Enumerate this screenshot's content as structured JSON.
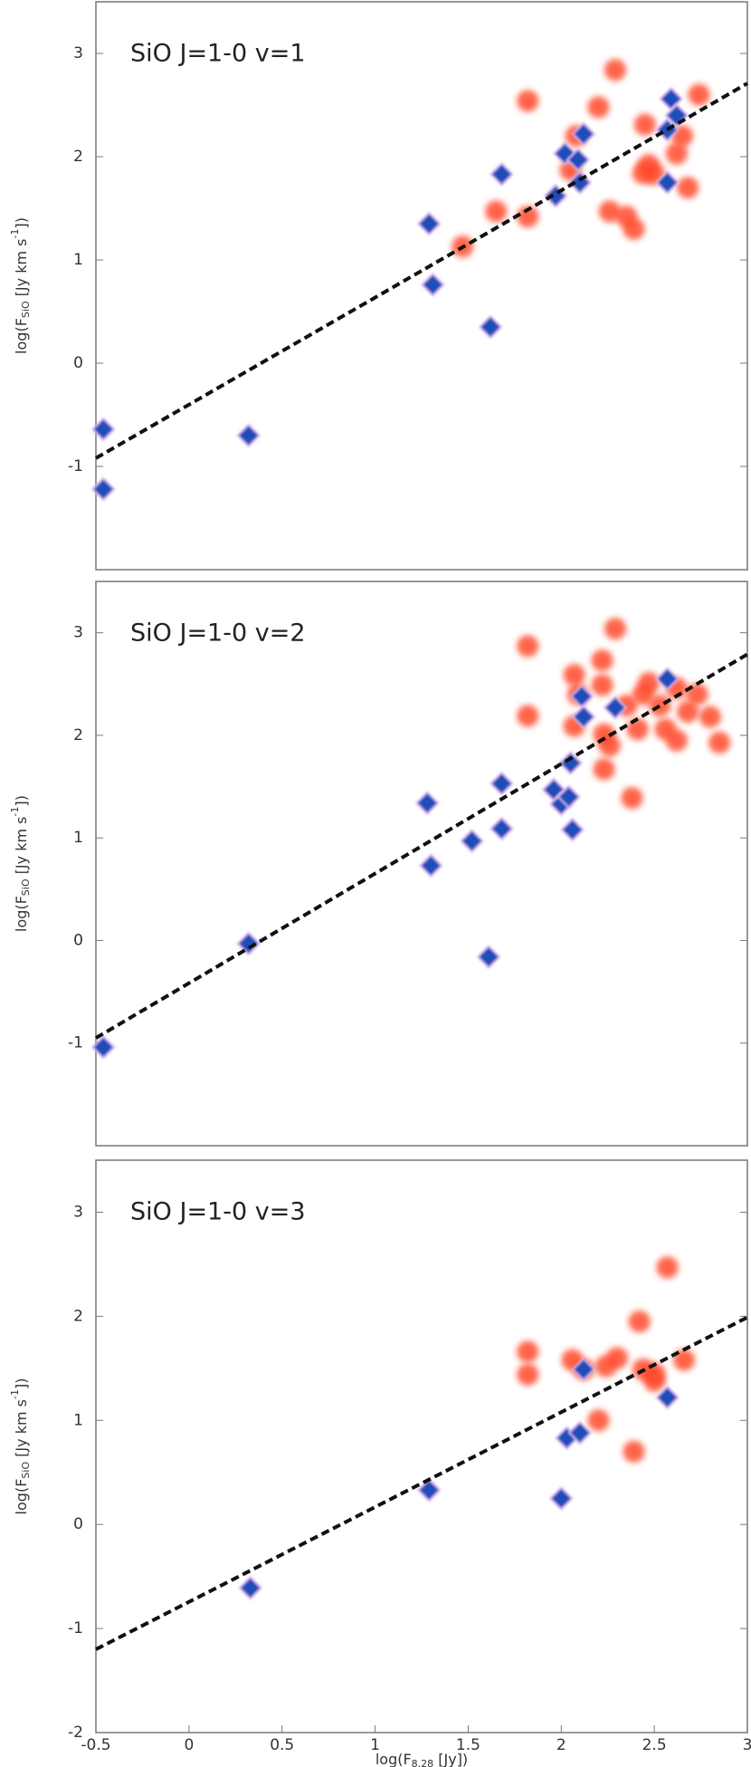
{
  "chart_data": [
    {
      "type": "scatter",
      "title": "SiO J=1-0 v=1",
      "ylabel": [
        "log(F",
        "SiO",
        " [Jy km s",
        "-1",
        "])"
      ],
      "xlim": [
        -0.5,
        3
      ],
      "ylim": [
        -2,
        3.5
      ],
      "yticks": [
        -1,
        0,
        1,
        2,
        3
      ],
      "series": [
        {
          "color": "#ff4a2a",
          "x": [
            1.47,
            1.65,
            1.82,
            1.82,
            2.05,
            2.08,
            2.2,
            2.29,
            2.26,
            2.35,
            2.39,
            2.45,
            2.47,
            2.5,
            2.62,
            2.65,
            2.74,
            2.68,
            2.44
          ],
          "y": [
            1.13,
            1.47,
            1.42,
            2.54,
            1.87,
            2.2,
            2.48,
            2.84,
            1.47,
            1.42,
            1.3,
            2.31,
            1.92,
            1.83,
            2.03,
            2.2,
            2.6,
            1.7,
            1.84
          ]
        },
        {
          "color": "#1f4db8",
          "x": [
            -0.46,
            -0.46,
            0.32,
            1.29,
            1.31,
            1.62,
            1.68,
            1.97,
            2.02,
            2.1,
            2.12,
            2.09,
            2.57,
            2.57,
            2.59,
            2.62
          ],
          "y": [
            -0.64,
            -1.22,
            -0.7,
            1.35,
            0.76,
            0.35,
            1.83,
            1.62,
            2.03,
            1.75,
            2.22,
            1.97,
            2.26,
            1.75,
            2.56,
            2.4
          ]
        }
      ],
      "fit": {
        "color": "#111111",
        "x": [
          -0.5,
          3
        ],
        "y": [
          -0.92,
          2.71
        ]
      }
    },
    {
      "type": "scatter",
      "title": "SiO J=1-0 v=2",
      "ylabel": [
        "log(F",
        "SiO",
        " [Jy km s",
        "-1",
        "])"
      ],
      "xlim": [
        -0.5,
        3
      ],
      "ylim": [
        -2,
        3.5
      ],
      "yticks": [
        -1,
        0,
        1,
        2,
        3
      ],
      "series": [
        {
          "color": "#ff4a2a",
          "x": [
            1.82,
            1.82,
            2.07,
            2.09,
            2.07,
            2.22,
            2.22,
            2.29,
            2.23,
            2.26,
            2.23,
            2.38,
            2.35,
            2.44,
            2.47,
            2.53,
            2.56,
            2.62,
            2.68,
            2.73,
            2.8,
            2.85,
            2.62,
            2.41
          ],
          "y": [
            2.87,
            2.19,
            2.59,
            2.4,
            2.09,
            2.73,
            2.49,
            3.04,
            2.01,
            1.9,
            1.67,
            1.39,
            2.29,
            2.4,
            2.51,
            2.29,
            2.06,
            1.95,
            2.23,
            2.4,
            2.18,
            1.93,
            2.46,
            2.06
          ]
        },
        {
          "color": "#1f4db8",
          "x": [
            -0.46,
            0.32,
            1.28,
            1.3,
            1.52,
            1.61,
            1.68,
            1.68,
            1.96,
            2.0,
            2.04,
            2.06,
            2.05,
            2.11,
            2.12,
            2.29,
            2.57
          ],
          "y": [
            -1.04,
            -0.03,
            1.34,
            0.73,
            0.97,
            -0.16,
            1.53,
            1.09,
            1.47,
            1.33,
            1.4,
            1.08,
            1.73,
            2.38,
            2.18,
            2.27,
            2.55
          ]
        }
      ],
      "fit": {
        "color": "#111111",
        "x": [
          -0.5,
          3
        ],
        "y": [
          -0.95,
          2.79
        ]
      }
    },
    {
      "type": "scatter",
      "title": "SiO J=1-0 v=3",
      "ylabel": [
        "log(F",
        "SiO",
        " [Jy km s",
        "-1",
        "])"
      ],
      "xlabel": [
        "log(F",
        "8.28",
        " [Jy])"
      ],
      "xlim": [
        -0.5,
        3
      ],
      "ylim": [
        -2,
        3.5
      ],
      "yticks": [
        -2,
        -1,
        0,
        1,
        2,
        3
      ],
      "xticks": [
        -0.5,
        0,
        0.5,
        1,
        1.5,
        2,
        2.5,
        3
      ],
      "series": [
        {
          "color": "#ff4a2a",
          "x": [
            1.82,
            1.82,
            2.06,
            2.12,
            2.2,
            2.24,
            2.3,
            2.39,
            2.42,
            2.44,
            2.5,
            2.57,
            2.66,
            2.5
          ],
          "y": [
            1.66,
            1.44,
            1.58,
            1.49,
            1.0,
            1.52,
            1.6,
            0.7,
            1.95,
            1.49,
            1.38,
            2.47,
            1.58,
            1.45
          ]
        },
        {
          "color": "#1f4db8",
          "x": [
            0.33,
            1.29,
            2.0,
            2.03,
            2.1,
            2.12,
            2.57
          ],
          "y": [
            -0.61,
            0.33,
            0.25,
            0.83,
            0.88,
            1.49,
            1.22
          ]
        }
      ],
      "fit": {
        "color": "#111111",
        "x": [
          -0.5,
          3
        ],
        "y": [
          -1.2,
          1.99
        ]
      }
    }
  ]
}
